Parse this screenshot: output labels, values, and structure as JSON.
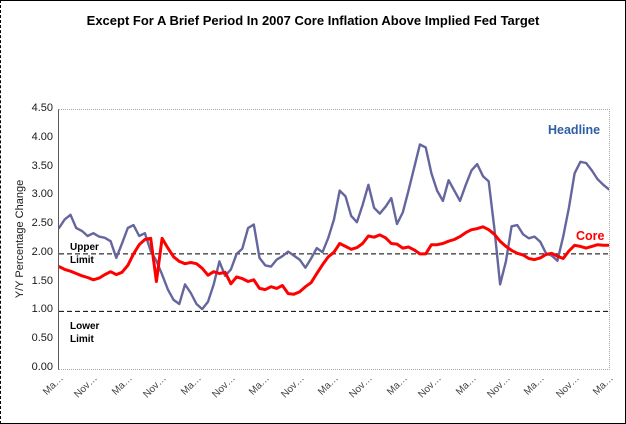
{
  "title": "Except For A Brief Period In 2007 Core Inflation Above Implied Fed Target",
  "y_axis": {
    "label": "Y/Y Percentage Change",
    "ticks": [
      "4.50",
      "4.00",
      "3.50",
      "3.00",
      "2.50",
      "2.00",
      "1.50",
      "1.00",
      "0.50",
      "0.00"
    ]
  },
  "x_axis": {
    "tick_labels": [
      "Ma…",
      "Nov…",
      "Ma…",
      "Nov…",
      "Ma…",
      "Nov…",
      "Ma…",
      "Nov…",
      "Ma…",
      "Nov…",
      "Ma…",
      "Nov…",
      "Ma…",
      "Nov…",
      "Ma…",
      "Nov…",
      "Ma…"
    ],
    "tick_every_n_points": 6
  },
  "annotations": {
    "upper": [
      "Upper",
      "Limit"
    ],
    "lower": [
      "Lower",
      "Limit"
    ]
  },
  "series_labels": {
    "headline": "Headline",
    "core": "Core"
  },
  "colors": {
    "headline_line": "#66669E",
    "core_line": "#FF0000",
    "headline_label": "#2E5FA3",
    "core_label": "#FF0000",
    "limit_line": "#000000"
  },
  "chart_data": {
    "type": "line",
    "title": "Except For A Brief Period In 2007 Core Inflation Above Implied Fed Target",
    "ylabel": "Y/Y Percentage Change",
    "ylim": [
      0,
      4.5
    ],
    "y_tick_step": 0.5,
    "grid": false,
    "upper_limit": 2.0,
    "lower_limit": 1.0,
    "x_frequency": "monthly",
    "x_tick_labels": [
      "Ma…",
      "Nov…",
      "Ma…",
      "Nov…",
      "Ma…",
      "Nov…",
      "Ma…",
      "Nov…",
      "Ma…",
      "Nov…",
      "Ma…",
      "Nov…",
      "Ma…",
      "Nov…",
      "Ma…",
      "Nov…",
      "Ma…"
    ],
    "series": [
      {
        "name": "Headline",
        "values": [
          2.45,
          2.6,
          2.68,
          2.45,
          2.4,
          2.31,
          2.36,
          2.3,
          2.28,
          2.22,
          1.93,
          2.18,
          2.45,
          2.5,
          2.31,
          2.36,
          2.05,
          1.88,
          1.64,
          1.38,
          1.2,
          1.13,
          1.47,
          1.32,
          1.13,
          1.04,
          1.17,
          1.47,
          1.87,
          1.62,
          1.73,
          2.0,
          2.09,
          2.45,
          2.51,
          1.93,
          1.8,
          1.78,
          1.9,
          1.96,
          2.04,
          1.97,
          1.9,
          1.76,
          1.92,
          2.1,
          2.03,
          2.28,
          2.6,
          3.1,
          3.0,
          2.66,
          2.55,
          2.85,
          3.2,
          2.8,
          2.7,
          2.82,
          2.97,
          2.52,
          2.72,
          3.1,
          3.5,
          3.9,
          3.85,
          3.4,
          3.1,
          2.92,
          3.28,
          3.1,
          2.92,
          3.2,
          3.45,
          3.56,
          3.35,
          3.26,
          2.44,
          1.47,
          1.87,
          2.48,
          2.5,
          2.34,
          2.27,
          2.3,
          2.21,
          2.01,
          1.97,
          1.88,
          2.3,
          2.8,
          3.4,
          3.6,
          3.58,
          3.45,
          3.3,
          3.2,
          3.12
        ]
      },
      {
        "name": "Core",
        "values": [
          1.78,
          1.73,
          1.7,
          1.66,
          1.62,
          1.59,
          1.55,
          1.58,
          1.64,
          1.69,
          1.64,
          1.68,
          1.8,
          2.0,
          2.16,
          2.25,
          2.27,
          1.52,
          2.27,
          2.1,
          1.95,
          1.87,
          1.83,
          1.85,
          1.83,
          1.75,
          1.63,
          1.69,
          1.66,
          1.68,
          1.48,
          1.6,
          1.57,
          1.52,
          1.55,
          1.4,
          1.38,
          1.43,
          1.4,
          1.45,
          1.31,
          1.3,
          1.34,
          1.43,
          1.5,
          1.66,
          1.81,
          1.95,
          2.03,
          2.18,
          2.13,
          2.08,
          2.11,
          2.18,
          2.31,
          2.29,
          2.33,
          2.28,
          2.18,
          2.17,
          2.1,
          2.12,
          2.07,
          2.0,
          2.0,
          2.16,
          2.16,
          2.18,
          2.22,
          2.25,
          2.3,
          2.37,
          2.42,
          2.44,
          2.47,
          2.42,
          2.34,
          2.22,
          2.13,
          2.06,
          2.01,
          1.98,
          1.92,
          1.9,
          1.93,
          1.99,
          2.01,
          1.96,
          1.92,
          2.05,
          2.15,
          2.13,
          2.1,
          2.13,
          2.16,
          2.15,
          2.15
        ]
      }
    ]
  }
}
